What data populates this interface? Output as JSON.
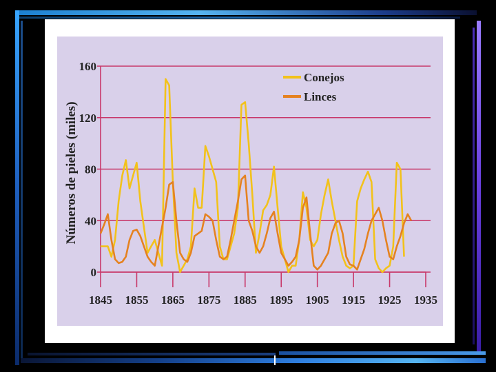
{
  "chart_data": {
    "type": "line",
    "title": "",
    "xlabel": "",
    "ylabel": "Números de pieles (miles)",
    "xlim": [
      1845,
      1935
    ],
    "ylim": [
      0,
      160
    ],
    "x_ticks": [
      "1845",
      "1855",
      "1865",
      "1875",
      "1885",
      "1895",
      "1905",
      "1915",
      "1925",
      "1935"
    ],
    "y_ticks": [
      "0",
      "40",
      "80",
      "120",
      "160"
    ],
    "legend_position": "top-right",
    "grid": "horizontal",
    "series": [
      {
        "name": "Conejos",
        "color": "#f2c21b",
        "points": [
          [
            1845,
            20
          ],
          [
            1846,
            20
          ],
          [
            1847,
            20
          ],
          [
            1848,
            12
          ],
          [
            1849,
            25
          ],
          [
            1850,
            55
          ],
          [
            1851,
            75
          ],
          [
            1852,
            87
          ],
          [
            1853,
            65
          ],
          [
            1854,
            75
          ],
          [
            1855,
            85
          ],
          [
            1856,
            55
          ],
          [
            1857,
            35
          ],
          [
            1858,
            15
          ],
          [
            1859,
            20
          ],
          [
            1860,
            25
          ],
          [
            1861,
            15
          ],
          [
            1862,
            5
          ],
          [
            1863,
            150
          ],
          [
            1864,
            145
          ],
          [
            1865,
            70
          ],
          [
            1866,
            15
          ],
          [
            1867,
            0
          ],
          [
            1868,
            5
          ],
          [
            1869,
            10
          ],
          [
            1870,
            20
          ],
          [
            1871,
            65
          ],
          [
            1872,
            50
          ],
          [
            1873,
            50
          ],
          [
            1874,
            98
          ],
          [
            1875,
            90
          ],
          [
            1876,
            80
          ],
          [
            1877,
            70
          ],
          [
            1878,
            20
          ],
          [
            1879,
            10
          ],
          [
            1880,
            10
          ],
          [
            1881,
            20
          ],
          [
            1882,
            30
          ],
          [
            1883,
            50
          ],
          [
            1884,
            130
          ],
          [
            1885,
            132
          ],
          [
            1886,
            100
          ],
          [
            1887,
            60
          ],
          [
            1888,
            15
          ],
          [
            1889,
            30
          ],
          [
            1890,
            48
          ],
          [
            1891,
            52
          ],
          [
            1892,
            60
          ],
          [
            1893,
            82
          ],
          [
            1894,
            50
          ],
          [
            1895,
            20
          ],
          [
            1896,
            10
          ],
          [
            1897,
            0
          ],
          [
            1898,
            5
          ],
          [
            1899,
            5
          ],
          [
            1900,
            25
          ],
          [
            1901,
            62
          ],
          [
            1902,
            50
          ],
          [
            1903,
            25
          ],
          [
            1904,
            20
          ],
          [
            1905,
            25
          ],
          [
            1906,
            45
          ],
          [
            1907,
            60
          ],
          [
            1908,
            72
          ],
          [
            1909,
            55
          ],
          [
            1910,
            40
          ],
          [
            1911,
            25
          ],
          [
            1912,
            12
          ],
          [
            1913,
            5
          ],
          [
            1914,
            3
          ],
          [
            1915,
            5
          ],
          [
            1916,
            55
          ],
          [
            1917,
            65
          ],
          [
            1918,
            72
          ],
          [
            1919,
            78
          ],
          [
            1920,
            70
          ],
          [
            1921,
            10
          ],
          [
            1922,
            3
          ],
          [
            1923,
            0
          ],
          [
            1924,
            3
          ],
          [
            1925,
            5
          ],
          [
            1926,
            20
          ],
          [
            1927,
            85
          ],
          [
            1928,
            80
          ],
          [
            1929,
            12
          ]
        ]
      },
      {
        "name": "Linces",
        "color": "#e58220",
        "points": [
          [
            1845,
            30
          ],
          [
            1846,
            37
          ],
          [
            1847,
            45
          ],
          [
            1848,
            25
          ],
          [
            1849,
            10
          ],
          [
            1850,
            7
          ],
          [
            1851,
            8
          ],
          [
            1852,
            12
          ],
          [
            1853,
            25
          ],
          [
            1854,
            32
          ],
          [
            1855,
            33
          ],
          [
            1856,
            28
          ],
          [
            1857,
            20
          ],
          [
            1858,
            12
          ],
          [
            1859,
            8
          ],
          [
            1860,
            5
          ],
          [
            1861,
            20
          ],
          [
            1862,
            35
          ],
          [
            1863,
            50
          ],
          [
            1864,
            68
          ],
          [
            1865,
            70
          ],
          [
            1866,
            40
          ],
          [
            1867,
            15
          ],
          [
            1868,
            10
          ],
          [
            1869,
            8
          ],
          [
            1870,
            15
          ],
          [
            1871,
            28
          ],
          [
            1872,
            30
          ],
          [
            1873,
            32
          ],
          [
            1874,
            45
          ],
          [
            1875,
            43
          ],
          [
            1876,
            40
          ],
          [
            1877,
            25
          ],
          [
            1878,
            12
          ],
          [
            1879,
            10
          ],
          [
            1880,
            12
          ],
          [
            1881,
            25
          ],
          [
            1882,
            40
          ],
          [
            1883,
            55
          ],
          [
            1884,
            72
          ],
          [
            1885,
            75
          ],
          [
            1886,
            40
          ],
          [
            1887,
            32
          ],
          [
            1888,
            20
          ],
          [
            1889,
            15
          ],
          [
            1890,
            20
          ],
          [
            1891,
            30
          ],
          [
            1892,
            42
          ],
          [
            1893,
            47
          ],
          [
            1894,
            30
          ],
          [
            1895,
            15
          ],
          [
            1896,
            10
          ],
          [
            1897,
            5
          ],
          [
            1898,
            8
          ],
          [
            1899,
            12
          ],
          [
            1900,
            25
          ],
          [
            1901,
            50
          ],
          [
            1902,
            58
          ],
          [
            1903,
            30
          ],
          [
            1904,
            5
          ],
          [
            1905,
            2
          ],
          [
            1906,
            5
          ],
          [
            1907,
            10
          ],
          [
            1908,
            15
          ],
          [
            1909,
            30
          ],
          [
            1910,
            38
          ],
          [
            1911,
            40
          ],
          [
            1912,
            30
          ],
          [
            1913,
            12
          ],
          [
            1914,
            6
          ],
          [
            1915,
            5
          ],
          [
            1916,
            2
          ],
          [
            1917,
            10
          ],
          [
            1918,
            18
          ],
          [
            1919,
            30
          ],
          [
            1920,
            40
          ],
          [
            1921,
            45
          ],
          [
            1922,
            50
          ],
          [
            1923,
            40
          ],
          [
            1924,
            25
          ],
          [
            1925,
            12
          ],
          [
            1926,
            10
          ],
          [
            1927,
            20
          ],
          [
            1928,
            28
          ],
          [
            1929,
            38
          ],
          [
            1930,
            45
          ],
          [
            1931,
            40
          ]
        ]
      }
    ]
  }
}
